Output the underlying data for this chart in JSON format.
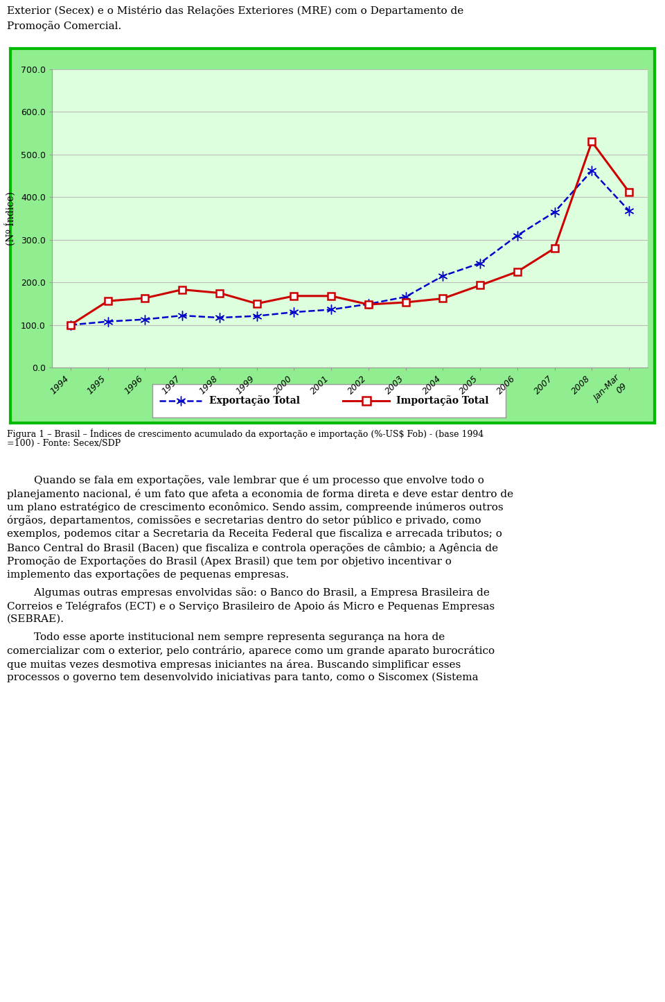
{
  "years": [
    "1994",
    "1995",
    "1996",
    "1997",
    "1998",
    "1999",
    "2000",
    "2001",
    "2002",
    "2003",
    "2004",
    "2005",
    "2006",
    "2007",
    "2008",
    "Jan-Mar\n09"
  ],
  "exportacao": [
    100.0,
    108.0,
    113.0,
    122.0,
    117.0,
    121.0,
    130.0,
    136.0,
    149.0,
    166.0,
    215.0,
    245.0,
    310.0,
    365.0,
    462.0,
    368.0
  ],
  "importacao": [
    100.0,
    156.0,
    163.0,
    183.0,
    175.0,
    150.0,
    168.0,
    168.0,
    148.0,
    153.0,
    162.0,
    193.0,
    225.0,
    280.0,
    530.0,
    412.0
  ],
  "exp_color": "#0000CC",
  "imp_color": "#CC0000",
  "bg_outer": "#90EE90",
  "bg_inner": "#DDFFDD",
  "border_color": "#00BB00",
  "ylim": [
    0,
    700
  ],
  "yticks": [
    0.0,
    100.0,
    200.0,
    300.0,
    400.0,
    500.0,
    600.0,
    700.0
  ],
  "ylabel": "(Nº Índice)",
  "grid_color": "#BBBBBB",
  "legend_label_exp": "Exportação Total",
  "legend_label_imp": "Importação Total",
  "figura_caption_line1": "Figura 1 – Brasil – Índices de crescimento acumulado da exportação e importação (%-US$ Fob) - (base 1994",
  "figura_caption_line2": "=100) - Fonte: Secex/SDP",
  "header_line1": "Exterior (Secex) e o Mistério das Relações Exteriores (MRE) com o Departamento de",
  "header_line2": "Promoção Comercial.",
  "para1_lines": [
    "        Quando se fala em exportações, vale lembrar que é um processo que envolve todo o",
    "planejamento nacional, é um fato que afeta a economia de forma direta e deve estar dentro de",
    "um plano estratégico de crescimento econômico. Sendo assim, compreende inúmeros outros",
    "órgãos, departamentos, comissões e secretarias dentro do setor público e privado, como",
    "exemplos, podemos citar a Secretaria da Receita Federal que fiscaliza e arrecada tributos; o",
    "Banco Central do Brasil (Bacen) que fiscaliza e controla operações de câmbio; a Agência de",
    "Promoção de Exportações do Brasil (Apex Brasil) que tem por objetivo incentivar o",
    "implemento das exportações de pequenas empresas."
  ],
  "para2_lines": [
    "        Algumas outras empresas envolvidas são: o Banco do Brasil, a Empresa Brasileira de",
    "Correios e Telégrafos (ECT) e o Serviço Brasileiro de Apoio ás Micro e Pequenas Empresas",
    "(SEBRAE)."
  ],
  "para3_lines": [
    "        Todo esse aporte institucional nem sempre representa segurança na hora de",
    "comercializar com o exterior, pelo contrário, aparece como um grande aparato burocrático",
    "que muitas vezes desmotiva empresas iniciantes na área. Buscando simplificar esses",
    "processos o governo tem desenvolvido iniciativas para tanto, como o Siscomex (Sistema"
  ]
}
